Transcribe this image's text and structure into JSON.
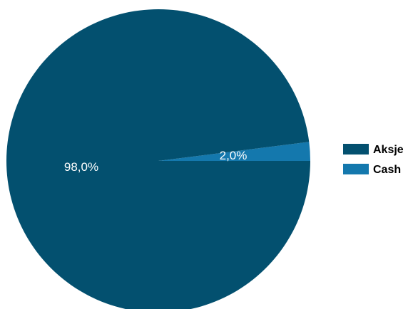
{
  "chart_data": {
    "type": "pie",
    "categories": [
      "Aksje",
      "Cash"
    ],
    "values": [
      98.0,
      2.0
    ],
    "labels": [
      "98,0%",
      "2,0%"
    ],
    "colors": [
      "#03506f",
      "#1478ad"
    ],
    "legend": {
      "position": "right",
      "entries": [
        "Aksje",
        "Cash"
      ]
    }
  }
}
